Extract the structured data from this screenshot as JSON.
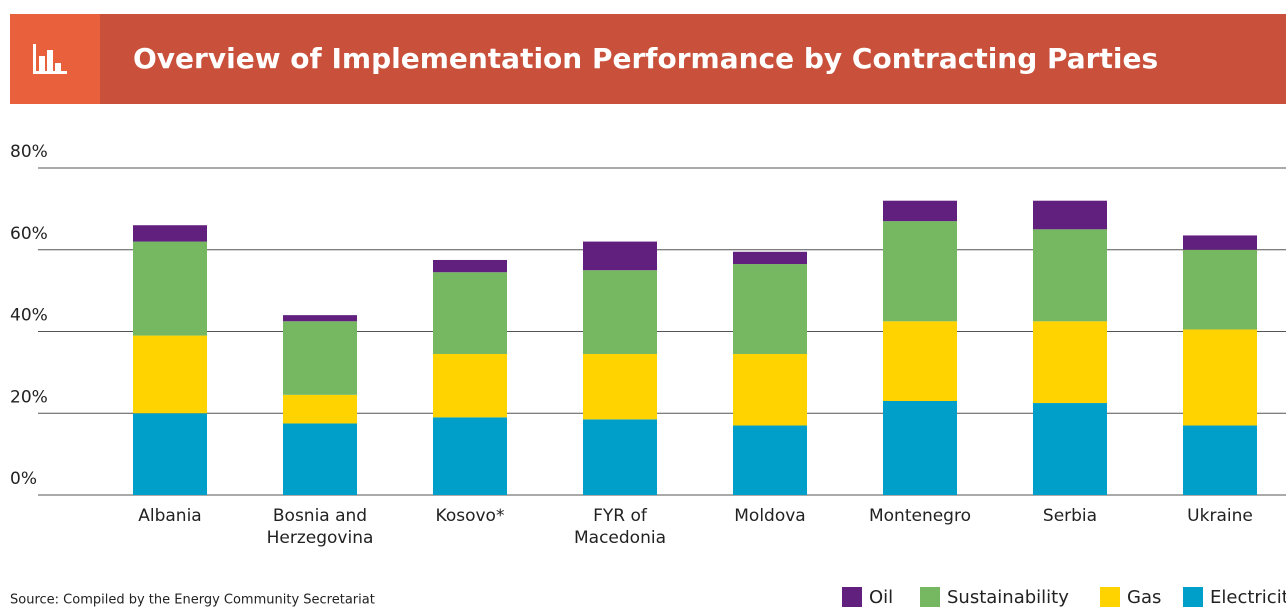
{
  "chart_data": {
    "type": "stacked_bar",
    "title": "Overview of Implementation Performance by Contracting Parties",
    "source": "Source: Compiled by the Energy Community Secretariat",
    "categories": [
      "Albania",
      "Bosnia and Herzegovina",
      "Kosovo*",
      "FYR of Macedonia",
      "Moldova",
      "Montenegro",
      "Serbia",
      "Ukraine"
    ],
    "series": [
      {
        "name": "Electricity",
        "color": "#009fca",
        "values": [
          20,
          17.5,
          19,
          18.5,
          17,
          23,
          22.5,
          17
        ]
      },
      {
        "name": "Gas",
        "color": "#ffd300",
        "values": [
          19,
          7,
          15.5,
          16,
          17.5,
          19.5,
          20,
          23.5
        ]
      },
      {
        "name": "Sustainability",
        "color": "#76b862",
        "values": [
          23,
          18,
          20,
          20.5,
          22,
          24.5,
          22.5,
          19.5
        ]
      },
      {
        "name": "Oil",
        "color": "#62207e",
        "values": [
          4,
          1.5,
          3,
          7,
          3,
          5,
          7,
          3.5
        ]
      }
    ],
    "ylim": [
      0,
      80
    ],
    "yticks": [
      {
        "value": 0,
        "label": "0%"
      },
      {
        "value": 20,
        "label": "20%"
      },
      {
        "value": 40,
        "label": "40%"
      },
      {
        "value": 60,
        "label": "60%"
      },
      {
        "value": 80,
        "label": "80%"
      }
    ],
    "grid": true
  }
}
